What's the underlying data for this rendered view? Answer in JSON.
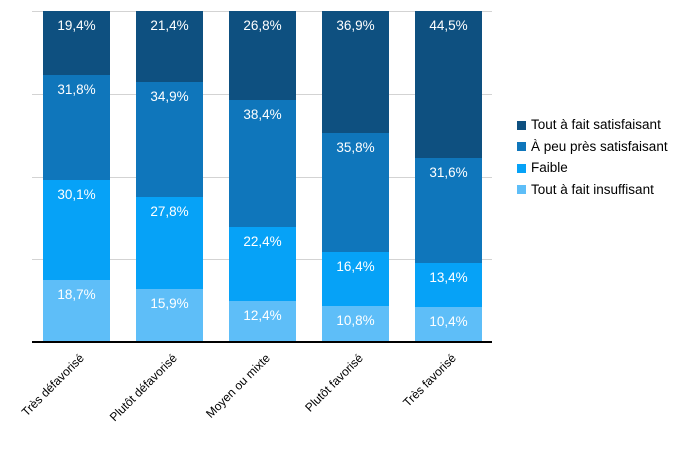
{
  "chart_data": {
    "type": "bar",
    "stacked": true,
    "orientation": "vertical",
    "title": "",
    "xlabel": "",
    "ylabel": "",
    "categories": [
      "Très défavorisé",
      "Plutôt défavorisé",
      "Moyen ou mixte",
      "Plutôt favorisé",
      "Très favorisé"
    ],
    "series": [
      {
        "name": "Tout à fait satisfaisant",
        "color": "#0E5080",
        "values": [
          19.4,
          21.4,
          26.8,
          36.9,
          44.5
        ],
        "labels": [
          "19,4%",
          "21,4%",
          "26,8%",
          "36,9%",
          "44,5%"
        ]
      },
      {
        "name": "À peu près satisfaisant",
        "color": "#0F76BB",
        "values": [
          31.8,
          34.9,
          38.4,
          35.8,
          31.6
        ],
        "labels": [
          "31,8%",
          "34,9%",
          "38,4%",
          "35,8%",
          "31,6%"
        ]
      },
      {
        "name": "Faible",
        "color": "#06A2F7",
        "values": [
          30.1,
          27.8,
          22.4,
          16.4,
          13.4
        ],
        "labels": [
          "30,1%",
          "27,8%",
          "22,4%",
          "16,4%",
          "13,4%"
        ]
      },
      {
        "name": "Tout à fait insuffisant",
        "color": "#5EBEF8",
        "values": [
          18.7,
          15.9,
          12.4,
          10.8,
          10.4
        ],
        "labels": [
          "18,7%",
          "15,9%",
          "12,4%",
          "10,8%",
          "10,4%"
        ]
      }
    ],
    "ylim": [
      0,
      100
    ],
    "yticks": [
      0,
      25,
      50,
      75,
      100
    ],
    "y_axis_labels_visible": false,
    "grid": true,
    "gridline_color": "#D3D3D3",
    "axis_color": "#000000",
    "value_label_color": "#FFFFFF",
    "decimal_separator": ",",
    "legend_position": "right"
  }
}
